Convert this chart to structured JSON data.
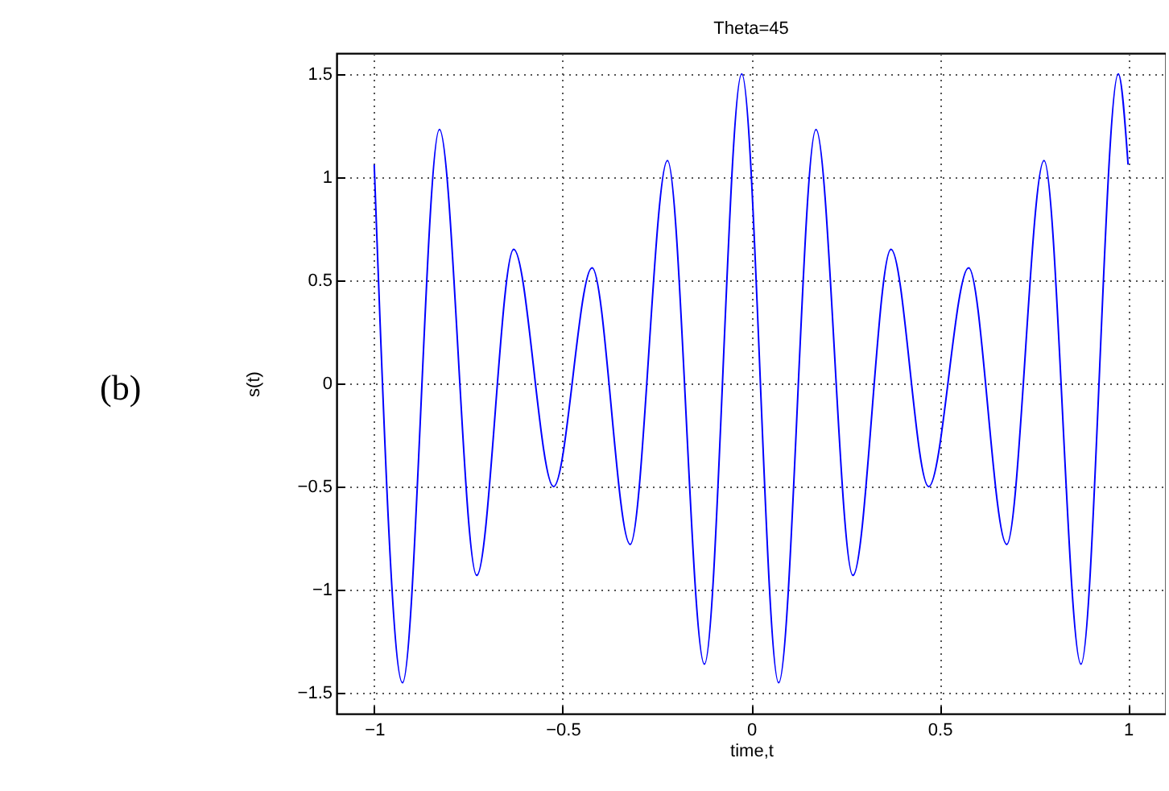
{
  "chart_data": {
    "type": "line",
    "title": "Theta=45",
    "xlabel": "time,t",
    "ylabel": "s(t)",
    "annotations": [
      "(b)"
    ],
    "x": [
      -1,
      -0.925,
      -0.827,
      -0.728,
      -0.63,
      -0.524,
      -0.422,
      -0.321,
      -0.222,
      -0.124,
      -0.025,
      0.073,
      0.172,
      0.27,
      0.371,
      0.471,
      0.577,
      0.678,
      0.777,
      0.875,
      0.974,
      1
    ],
    "series": [
      {
        "color": "#0000ff",
        "values": [
          1.06,
          -1.45,
          1.23,
          -0.93,
          0.65,
          -0.5,
          0.56,
          -0.78,
          1.08,
          -1.36,
          1.5,
          -1.45,
          1.23,
          -0.93,
          0.65,
          -0.5,
          0.56,
          -0.78,
          1.08,
          -1.36,
          1.5,
          1.06
        ]
      }
    ],
    "xlim": [
      -1.1,
      1.1
    ],
    "ylim": [
      -1.6,
      1.6
    ],
    "xticks": [
      -1,
      -0.5,
      0,
      0.5,
      1
    ],
    "yticks": [
      -1.5,
      -1,
      -0.5,
      0,
      0.5,
      1,
      1.5
    ],
    "grid": true,
    "marker": "none",
    "line_style": "solid"
  }
}
